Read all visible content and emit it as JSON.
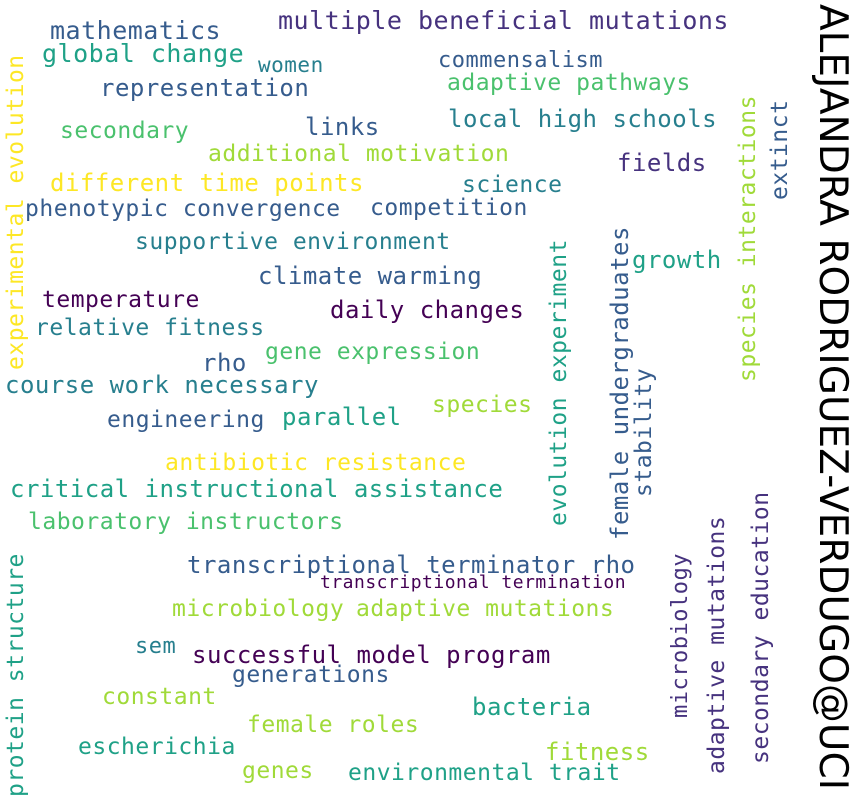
{
  "colors": {
    "yellow": "#fde725",
    "lime": "#a0da39",
    "lightgreen": "#4ac16d",
    "green": "#1fa187",
    "teal": "#277f8e",
    "blue": "#365c8d",
    "indigo": "#46327e",
    "purple": "#440154",
    "black": "#000000"
  },
  "words": {
    "w1": "multiple beneficial mutations",
    "w2": "mathematics",
    "w3": "global change",
    "w4": "women",
    "w5": "commensalism",
    "w6": "representation",
    "w7": "adaptive pathways",
    "w8": "links",
    "w9": "local high schools",
    "w10": "secondary",
    "w11": "additional motivation",
    "w12": "fields",
    "w13": "different time points",
    "w14": "science",
    "w15": "phenotypic convergence",
    "w16": "competition",
    "w17": "supportive environment",
    "w18": "growth",
    "w19": "climate warming",
    "w20": "temperature",
    "w21": "daily changes",
    "w22": "relative fitness",
    "w23": "gene expression",
    "w24": "rho",
    "w25": "course work necessary",
    "w26": "species",
    "w27": "engineering",
    "w28": "parallel",
    "w29": "antibiotic resistance",
    "w30": "critical instructional assistance",
    "w31": "laboratory instructors",
    "w32": "transcriptional terminator rho",
    "w33": "transcriptional termination",
    "w34": "microbiology",
    "w35": "adaptive mutations",
    "w36": "sem",
    "w37": "successful model program",
    "w38": "generations",
    "w39": "constant",
    "w40": "bacteria",
    "w41": "female roles",
    "w42": "escherichia",
    "w43": "fitness",
    "w44": "genes",
    "w45": "environmental trait",
    "v1": "experimental evolution",
    "v2": "protein structure",
    "v3": "evolution experiment",
    "v4": "female undergraduates",
    "v5": "stability",
    "v6": "microbiology",
    "v7": "adaptive mutations",
    "v8": "secondary education",
    "v9": "species interactions",
    "v10": "extinct",
    "author": "ALEJANDRA RODRIGUEZ-VERDUGO@UCI"
  }
}
